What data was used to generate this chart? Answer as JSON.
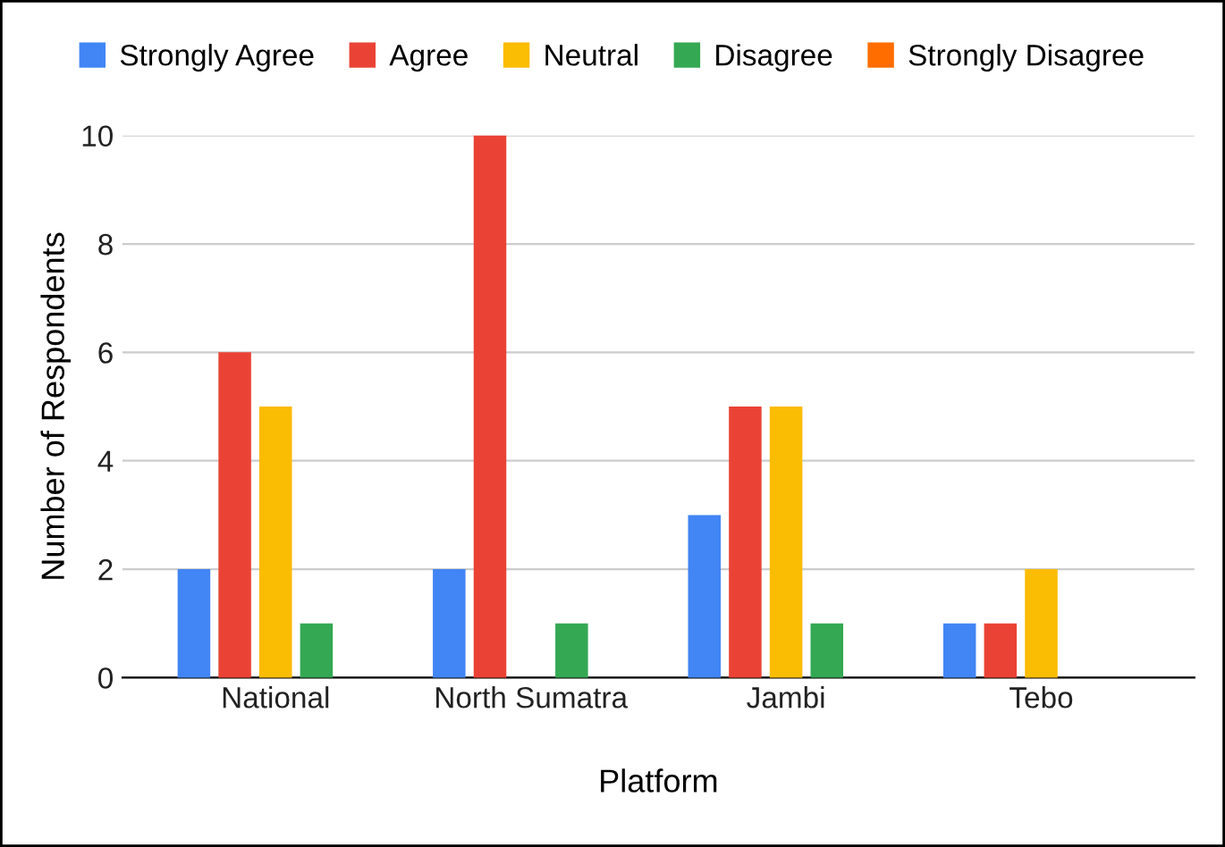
{
  "chart_data": {
    "type": "bar",
    "xlabel": "Platform",
    "ylabel": "Number of Respondents",
    "categories": [
      "National",
      "North Sumatra",
      "Jambi",
      "Tebo"
    ],
    "series": [
      {
        "name": "Strongly Agree",
        "color": "#4285f4",
        "values": [
          2,
          2,
          3,
          1
        ]
      },
      {
        "name": "Agree",
        "color": "#ea4335",
        "values": [
          6,
          10,
          5,
          1
        ]
      },
      {
        "name": "Neutral",
        "color": "#fbbc04",
        "values": [
          5,
          0,
          5,
          2
        ]
      },
      {
        "name": "Disagree",
        "color": "#34a853",
        "values": [
          1,
          1,
          1,
          0
        ]
      },
      {
        "name": "Strongly Disagree",
        "color": "#ff6d01",
        "values": [
          0,
          0,
          0,
          0
        ]
      }
    ],
    "ylim": [
      0,
      10
    ],
    "yticks": [
      0,
      2,
      4,
      6,
      8,
      10
    ],
    "grid": "y",
    "legend": "top"
  }
}
